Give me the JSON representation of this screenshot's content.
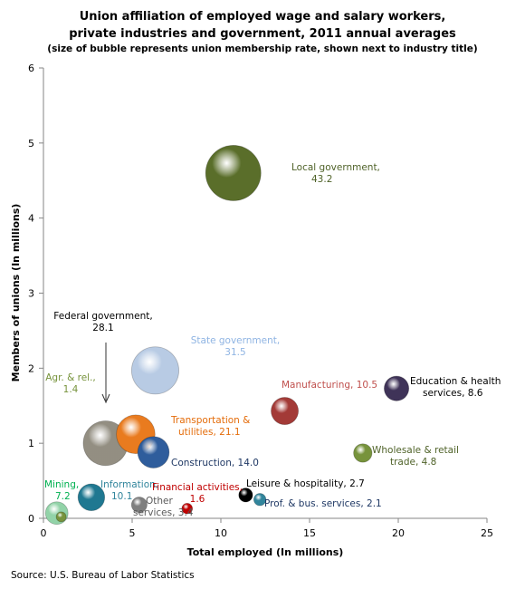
{
  "chart_data": {
    "type": "bubble",
    "title_lines": [
      "Union affiliation of employed wage and salary workers,",
      "private industries and government, 2011 annual averages"
    ],
    "subtitle": "(size of bubble represents union membership rate, shown next to industry title)",
    "xlabel": "Total employed (In millions)",
    "ylabel": "Members of unions (In millions)",
    "xlim": [
      0,
      25
    ],
    "ylim": [
      0,
      6
    ],
    "xticks": [
      "0",
      "5",
      "10",
      "15",
      "20",
      "25"
    ],
    "yticks": [
      "0",
      "1",
      "2",
      "3",
      "4",
      "5",
      "6"
    ],
    "grid": false,
    "source": "Source: U.S. Bureau of Labor Statistics",
    "series": [
      {
        "name": "Local government",
        "x": 10.7,
        "y": 4.6,
        "rate": 43.2,
        "color": "#5a6e2a",
        "label_lines": [
          "Local government,",
          "43.2"
        ],
        "label_color": "#4f6228",
        "label_anchor": "start"
      },
      {
        "name": "State government",
        "x": 6.3,
        "y": 1.97,
        "rate": 31.5,
        "color": "#b8cbe4",
        "label_lines": [
          "State government,",
          "31.5"
        ],
        "label_color": "#8fb4e3",
        "label_anchor": "middle"
      },
      {
        "name": "Federal government",
        "x": 3.5,
        "y": 1.0,
        "rate": 28.1,
        "color": "#8a8577",
        "label_lines": [
          "Federal government,",
          "28.1"
        ],
        "label_color": "#000000",
        "label_anchor": "middle"
      },
      {
        "name": "Transportation & utilities",
        "x": 5.2,
        "y": 1.12,
        "rate": 21.1,
        "color": "#e97b1f",
        "label_lines": [
          "Transportation &",
          "utilities, 21.1"
        ],
        "label_color": "#e46c0a",
        "label_anchor": "start"
      },
      {
        "name": "Construction",
        "x": 6.2,
        "y": 0.88,
        "rate": 14.0,
        "color": "#2f5d9c",
        "label_lines": [
          "Construction, 14.0"
        ],
        "label_color": "#1f3864",
        "label_anchor": "start"
      },
      {
        "name": "Manufacturing",
        "x": 13.6,
        "y": 1.43,
        "rate": 10.5,
        "color": "#a33a37",
        "label_lines": [
          "Manufacturing, 10.5"
        ],
        "label_color": "#c0504d",
        "label_anchor": "start"
      },
      {
        "name": "Education & health services",
        "x": 19.9,
        "y": 1.73,
        "rate": 8.6,
        "color": "#3f3358",
        "label_lines": [
          "Education & health",
          "services, 8.6"
        ],
        "label_color": "#000000",
        "label_anchor": "start"
      },
      {
        "name": "Wholesale & retail trade",
        "x": 18.0,
        "y": 0.87,
        "rate": 4.8,
        "color": "#77933c",
        "label_lines": [
          "Wholesale & retail",
          "trade, 4.8"
        ],
        "label_color": "#4f6228",
        "label_anchor": "start"
      },
      {
        "name": "Information",
        "x": 2.7,
        "y": 0.28,
        "rate": 10.1,
        "color": "#1f7891",
        "label_lines": [
          "Information,",
          "10.1"
        ],
        "label_color": "#31859c",
        "label_anchor": "start"
      },
      {
        "name": "Mining",
        "x": 0.75,
        "y": 0.07,
        "rate": 7.2,
        "color": "#92d3a8",
        "label_lines": [
          "Mining,",
          "7.2"
        ],
        "label_color": "#00b050",
        "label_anchor": "start"
      },
      {
        "name": "Agr. & rel.",
        "x": 1.0,
        "y": 0.02,
        "rate": 1.4,
        "color": "#77933c",
        "label_lines": [
          "Agr.  & rel.,",
          "1.4"
        ],
        "label_color": "#77933c",
        "label_anchor": "middle"
      },
      {
        "name": "Other services",
        "x": 5.4,
        "y": 0.18,
        "rate": 3.4,
        "color": "#7f7f7f",
        "label_lines": [
          "Other",
          "services, 3.4"
        ],
        "label_color": "#595959",
        "label_anchor": "start"
      },
      {
        "name": "Financial activities",
        "x": 8.1,
        "y": 0.13,
        "rate": 1.6,
        "color": "#c00000",
        "label_lines": [
          "Financial activities,",
          "1.6"
        ],
        "label_color": "#c00000",
        "label_anchor": "middle"
      },
      {
        "name": "Leisure & hospitality",
        "x": 11.4,
        "y": 0.31,
        "rate": 2.7,
        "color": "#000000",
        "label_lines": [
          "Leisure & hospitality, 2.7"
        ],
        "label_color": "#000000",
        "label_anchor": "start"
      },
      {
        "name": "Prof. & bus. services",
        "x": 12.2,
        "y": 0.25,
        "rate": 2.1,
        "color": "#31859c",
        "label_lines": [
          "Prof. & bus. services, 2.1"
        ],
        "label_color": "#1f3864",
        "label_anchor": "start"
      }
    ]
  }
}
